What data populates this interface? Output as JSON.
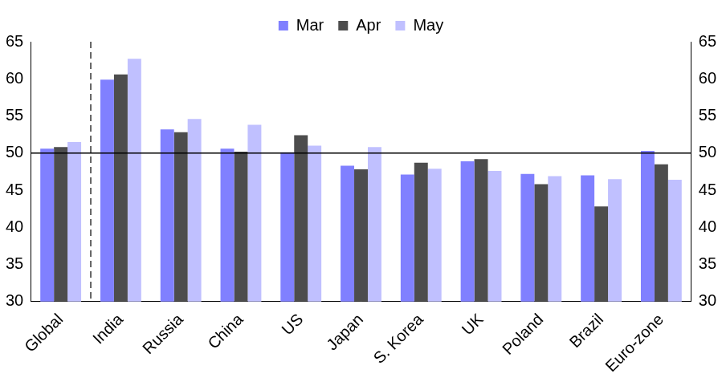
{
  "chart_data": {
    "type": "bar",
    "categories": [
      "Global",
      "India",
      "Russia",
      "China",
      "US",
      "Japan",
      "S. Korea",
      "UK",
      "Poland",
      "Brazil",
      "Euro-zone"
    ],
    "series": [
      {
        "name": "Mar",
        "color": "#8080ff",
        "values": [
          50.6,
          59.9,
          53.2,
          50.6,
          50.1,
          48.3,
          47.1,
          48.9,
          47.2,
          47.0,
          50.3
        ]
      },
      {
        "name": "Apr",
        "color": "#4d4d4d",
        "values": [
          50.8,
          60.6,
          52.8,
          50.2,
          52.4,
          47.8,
          48.7,
          49.2,
          45.8,
          42.8,
          48.5
        ]
      },
      {
        "name": "May",
        "color": "#c0c0ff",
        "values": [
          51.5,
          62.7,
          54.6,
          53.8,
          51.0,
          50.8,
          47.9,
          47.6,
          46.9,
          46.5,
          46.4
        ]
      }
    ],
    "ylim": [
      30,
      65
    ],
    "yticks": [
      30,
      35,
      40,
      45,
      50,
      55,
      60,
      65
    ],
    "reference_line": 50,
    "grid": false,
    "legend": "top"
  }
}
